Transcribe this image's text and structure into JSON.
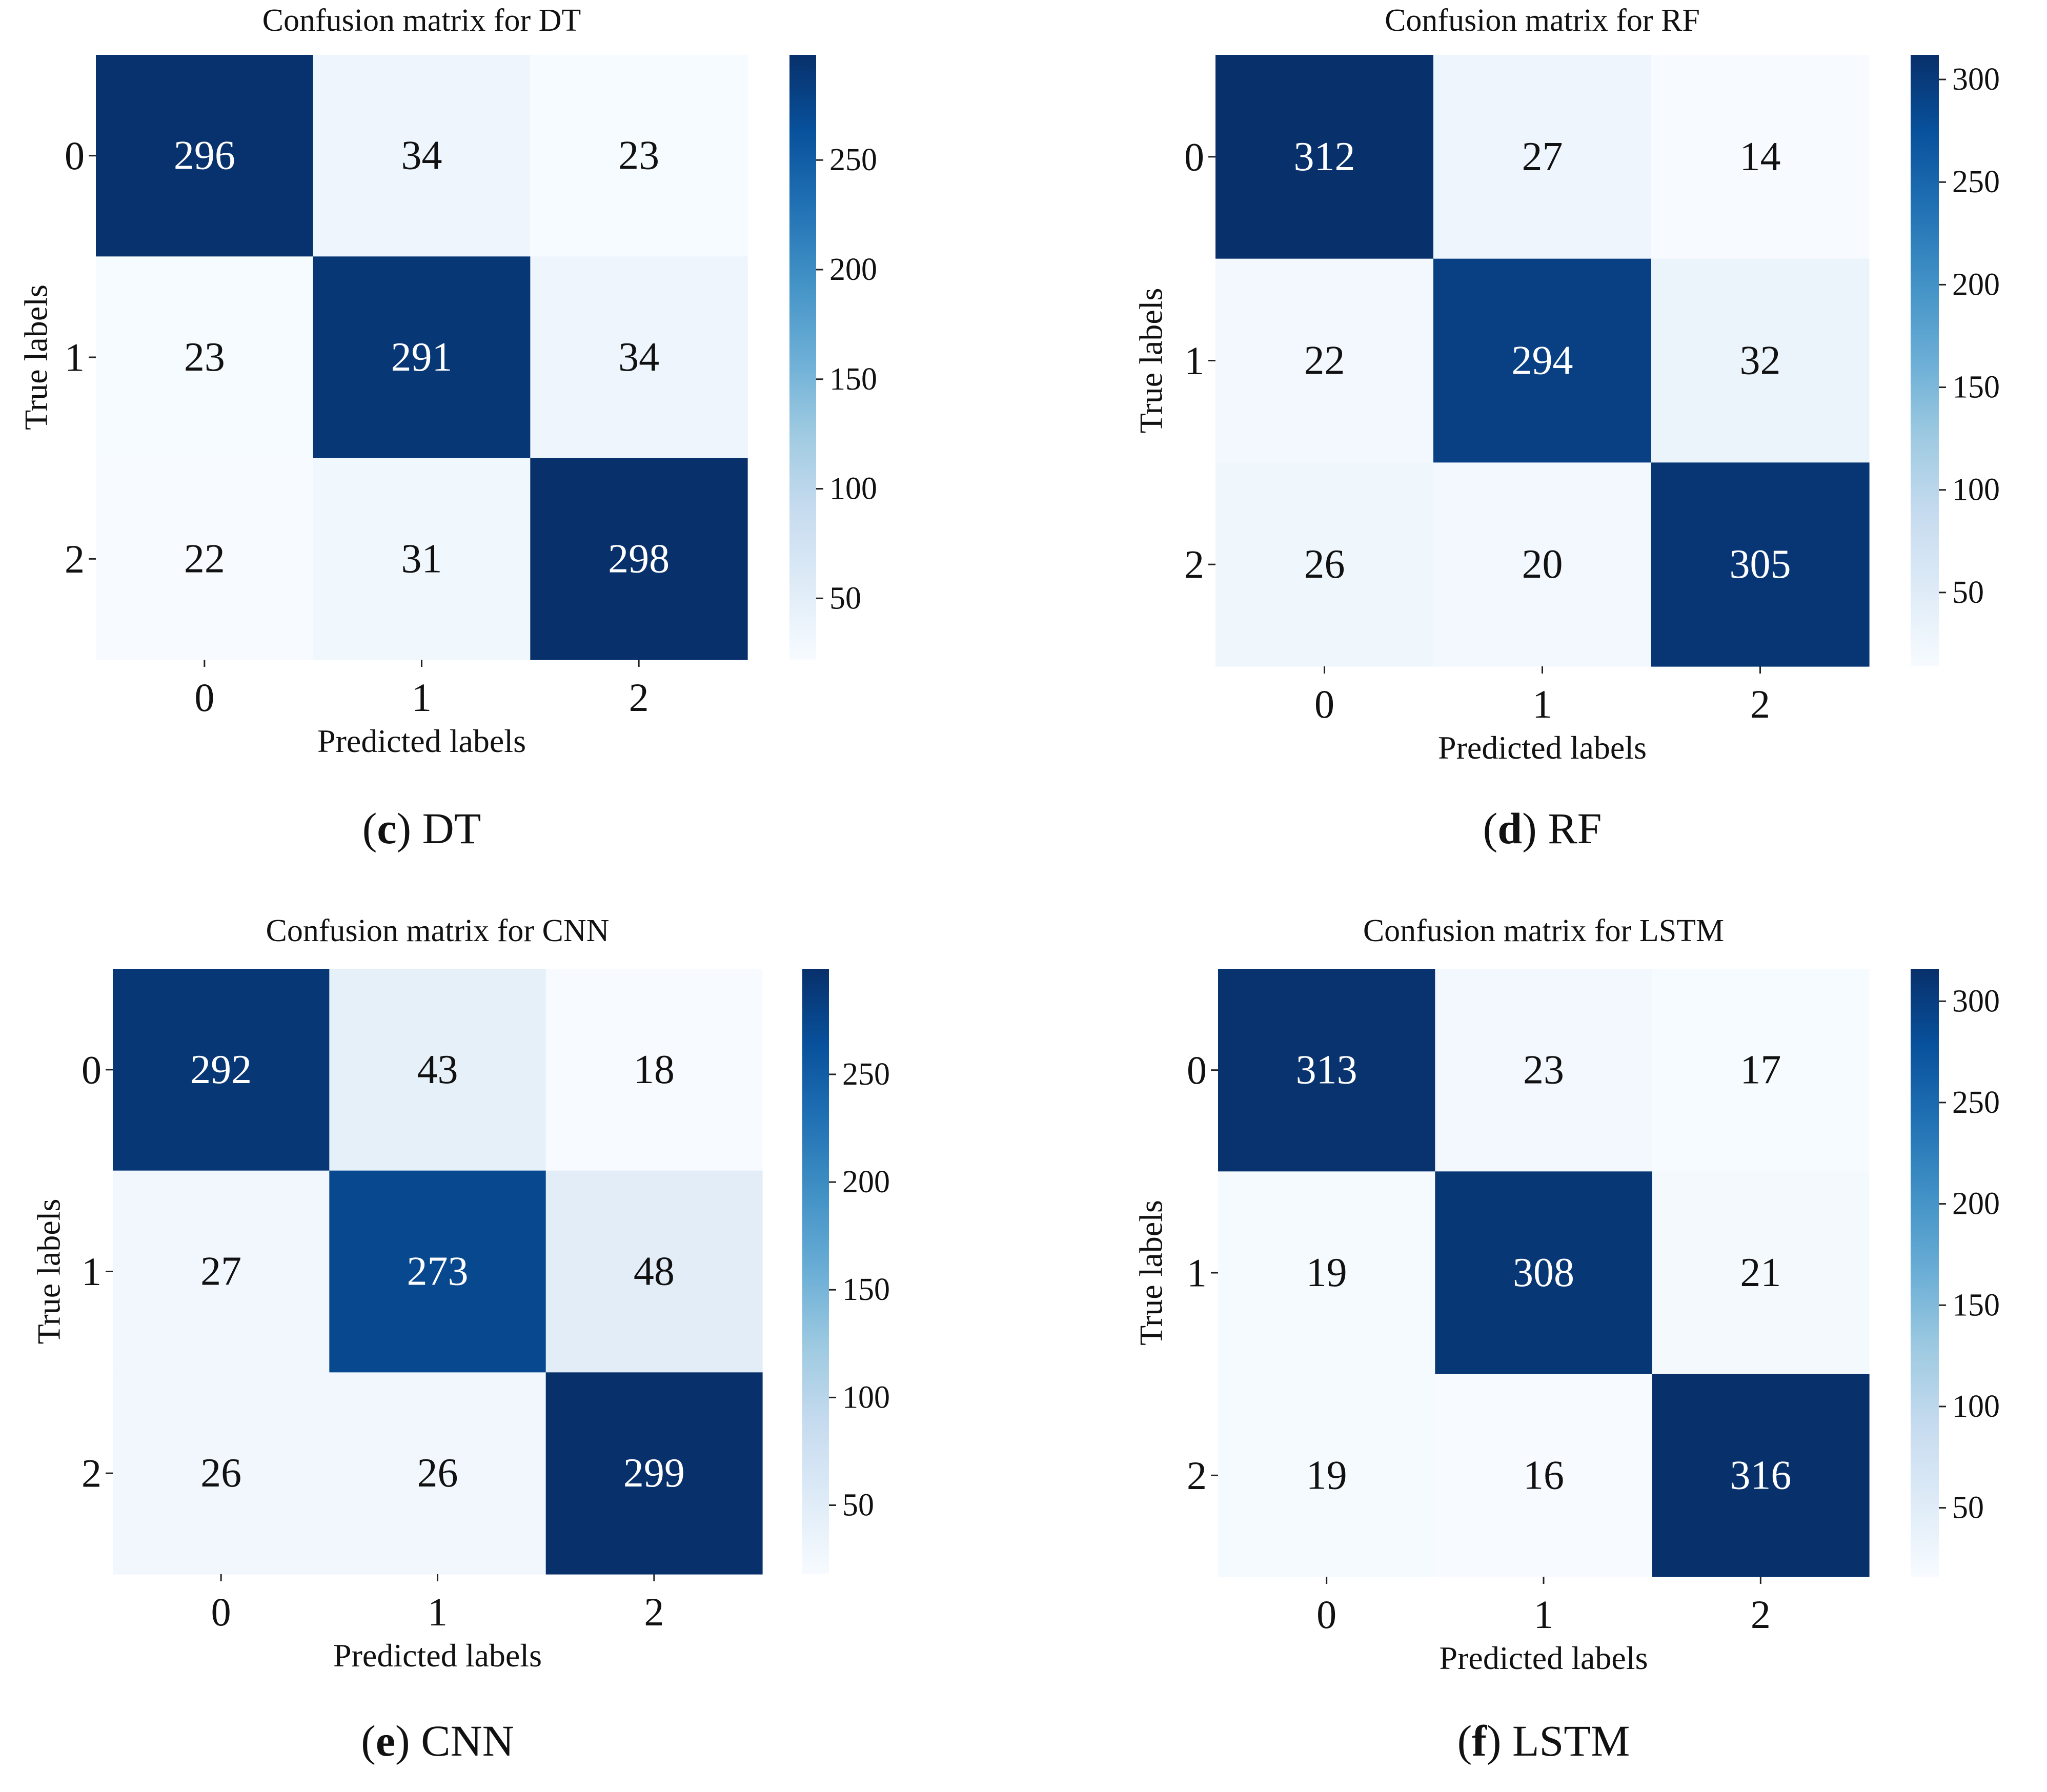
{
  "colormap": [
    "#f7fbff",
    "#deebf7",
    "#c6dbef",
    "#9ecae1",
    "#6baed6",
    "#4292c6",
    "#2171b5",
    "#08519c",
    "#08306b"
  ],
  "text_light": "#ffffff",
  "text_dark": "#111111",
  "chart_data": [
    {
      "type": "heatmap",
      "title": "Confusion matrix for DT",
      "xlabel": "Predicted labels",
      "ylabel": "True labels",
      "x_tick_labels": [
        "0",
        "1",
        "2"
      ],
      "y_tick_labels": [
        "0",
        "1",
        "2"
      ],
      "matrix": [
        [
          296,
          34,
          23
        ],
        [
          23,
          291,
          34
        ],
        [
          22,
          31,
          298
        ]
      ],
      "colorbar_range": [
        22,
        298
      ],
      "colorbar_ticks": [
        50,
        100,
        150,
        200,
        250
      ],
      "caption": {
        "letter": "c",
        "name": "DT"
      }
    },
    {
      "type": "heatmap",
      "title": "Confusion matrix for RF",
      "xlabel": "Predicted labels",
      "ylabel": "True labels",
      "x_tick_labels": [
        "0",
        "1",
        "2"
      ],
      "y_tick_labels": [
        "0",
        "1",
        "2"
      ],
      "matrix": [
        [
          312,
          27,
          14
        ],
        [
          22,
          294,
          32
        ],
        [
          26,
          20,
          305
        ]
      ],
      "colorbar_range": [
        14,
        312
      ],
      "colorbar_ticks": [
        50,
        100,
        150,
        200,
        250,
        300
      ],
      "caption": {
        "letter": "d",
        "name": "RF"
      }
    },
    {
      "type": "heatmap",
      "title": "Confusion matrix for CNN",
      "xlabel": "Predicted labels",
      "ylabel": "True labels",
      "x_tick_labels": [
        "0",
        "1",
        "2"
      ],
      "y_tick_labels": [
        "0",
        "1",
        "2"
      ],
      "matrix": [
        [
          292,
          43,
          18
        ],
        [
          27,
          273,
          48
        ],
        [
          26,
          26,
          299
        ]
      ],
      "colorbar_range": [
        18,
        299
      ],
      "colorbar_ticks": [
        50,
        100,
        150,
        200,
        250
      ],
      "caption": {
        "letter": "e",
        "name": "CNN"
      }
    },
    {
      "type": "heatmap",
      "title": "Confusion matrix for LSTM",
      "xlabel": "Predicted labels",
      "ylabel": "True labels",
      "x_tick_labels": [
        "0",
        "1",
        "2"
      ],
      "y_tick_labels": [
        "0",
        "1",
        "2"
      ],
      "matrix": [
        [
          313,
          23,
          17
        ],
        [
          19,
          308,
          21
        ],
        [
          19,
          16,
          316
        ]
      ],
      "colorbar_range": [
        16,
        316
      ],
      "colorbar_ticks": [
        50,
        100,
        150,
        200,
        250,
        300
      ],
      "caption": {
        "letter": "f",
        "name": "LSTM"
      }
    }
  ]
}
